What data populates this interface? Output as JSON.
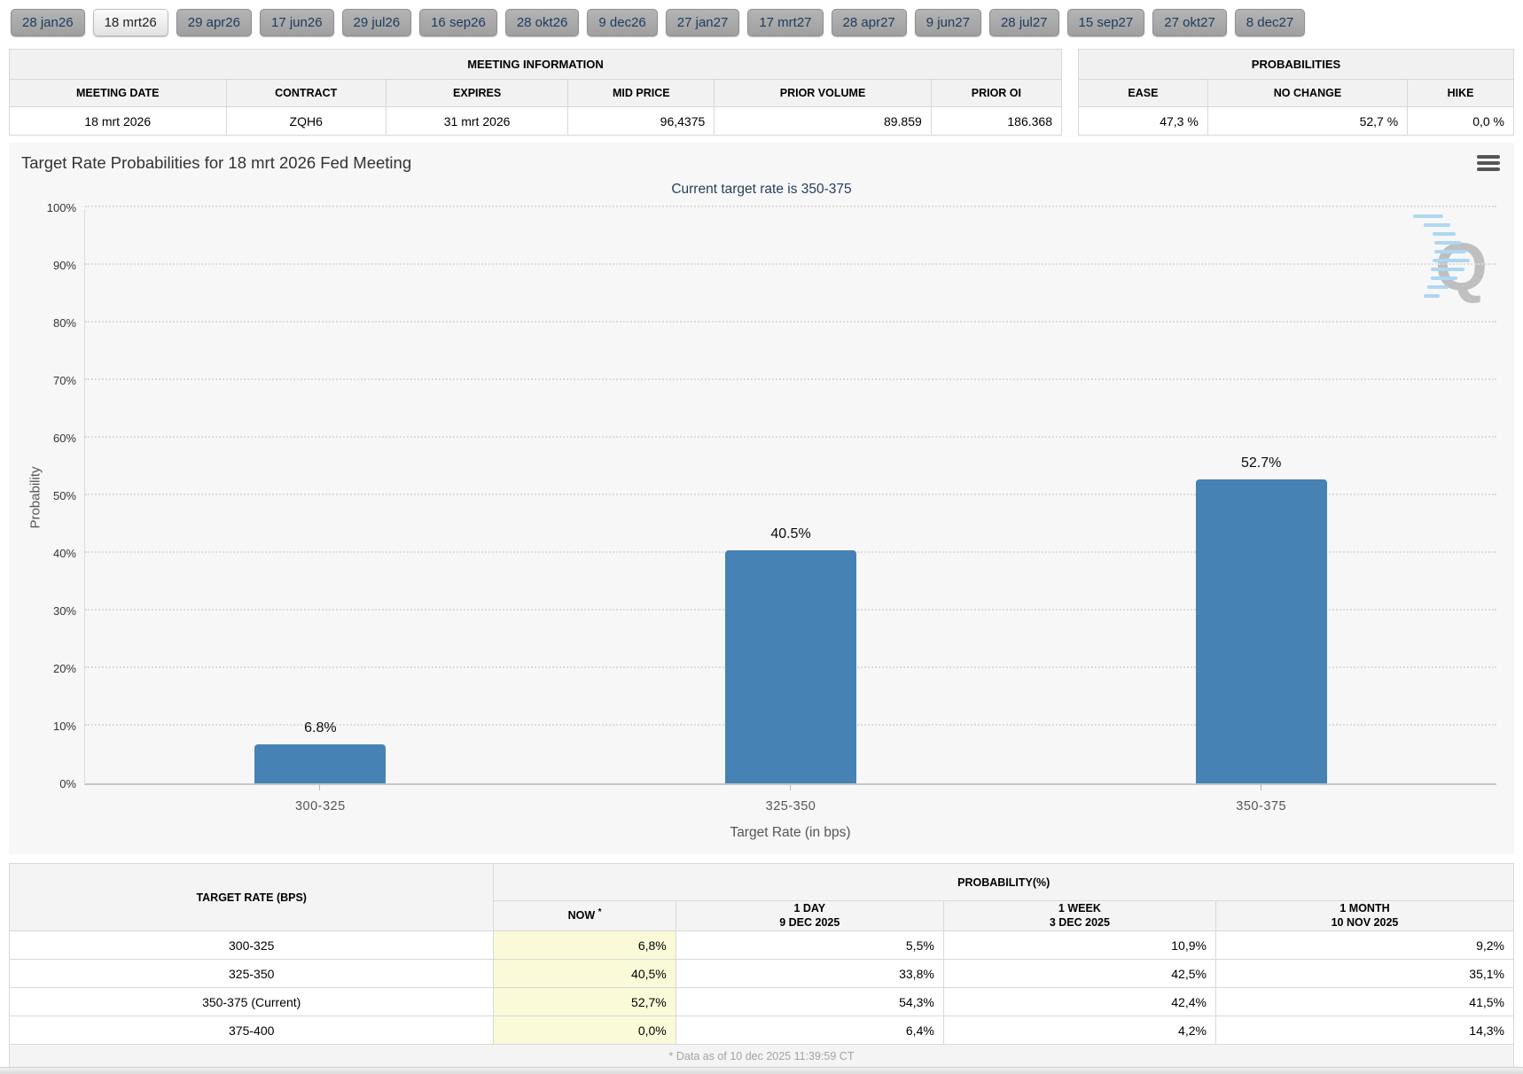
{
  "tabs": {
    "items": [
      {
        "label": "28 jan26",
        "selected": false
      },
      {
        "label": "18 mrt26",
        "selected": true
      },
      {
        "label": "29 apr26",
        "selected": false
      },
      {
        "label": "17 jun26",
        "selected": false
      },
      {
        "label": "29 jul26",
        "selected": false
      },
      {
        "label": "16 sep26",
        "selected": false
      },
      {
        "label": "28 okt26",
        "selected": false
      },
      {
        "label": "9 dec26",
        "selected": false
      },
      {
        "label": "27 jan27",
        "selected": false
      },
      {
        "label": "17 mrt27",
        "selected": false
      },
      {
        "label": "28 apr27",
        "selected": false
      },
      {
        "label": "9 jun27",
        "selected": false
      },
      {
        "label": "28 jul27",
        "selected": false
      },
      {
        "label": "15 sep27",
        "selected": false
      },
      {
        "label": "27 okt27",
        "selected": false
      },
      {
        "label": "8 dec27",
        "selected": false
      }
    ]
  },
  "meeting_info": {
    "title": "MEETING INFORMATION",
    "headers": [
      "MEETING DATE",
      "CONTRACT",
      "EXPIRES",
      "MID PRICE",
      "PRIOR VOLUME",
      "PRIOR OI"
    ],
    "values": [
      "18 mrt 2026",
      "ZQH6",
      "31 mrt 2026",
      "96,4375",
      "89.859",
      "186.368"
    ]
  },
  "probabilities_summary": {
    "title": "PROBABILITIES",
    "headers": [
      "EASE",
      "NO CHANGE",
      "HIKE"
    ],
    "values": [
      "47,3 %",
      "52,7 %",
      "0,0 %"
    ]
  },
  "chart": {
    "menu_icon": "hamburger-menu-icon",
    "watermark_letter": "Q",
    "chart_data": {
      "type": "bar",
      "title": "Target Rate Probabilities for 18 mrt 2026 Fed Meeting",
      "subtitle": "Current target rate is 350-375",
      "categories": [
        "300-325",
        "325-350",
        "350-375"
      ],
      "values": [
        6.8,
        40.5,
        52.7
      ],
      "data_labels": [
        "6.8%",
        "40.5%",
        "52.7%"
      ],
      "xlabel": "Target Rate (in bps)",
      "ylabel": "Probability",
      "ylim": [
        0,
        100
      ],
      "ytick_step": 10,
      "ytick_suffix": "%",
      "grid": "horizontal-dotted",
      "legend": "none",
      "bar_color": "#4682b4"
    }
  },
  "rate_table": {
    "col_header": "TARGET RATE (BPS)",
    "group_header": "PROBABILITY(%)",
    "now_label": "NOW",
    "now_marker": "*",
    "history_columns": [
      {
        "line1": "1 DAY",
        "line2": "9 DEC 2025"
      },
      {
        "line1": "1 WEEK",
        "line2": "3 DEC 2025"
      },
      {
        "line1": "1 MONTH",
        "line2": "10 NOV 2025"
      }
    ],
    "rows": [
      {
        "rate": "300-325",
        "now": "6,8%",
        "day": "5,5%",
        "week": "10,9%",
        "month": "9,2%"
      },
      {
        "rate": "325-350",
        "now": "40,5%",
        "day": "33,8%",
        "week": "42,5%",
        "month": "35,1%"
      },
      {
        "rate": "350-375 (Current)",
        "now": "52,7%",
        "day": "54,3%",
        "week": "42,4%",
        "month": "41,5%"
      },
      {
        "rate": "375-400",
        "now": "0,0%",
        "day": "6,4%",
        "week": "4,2%",
        "month": "14,3%"
      }
    ],
    "footnote": "* Data as of 10 dec 2025 11:39:59 CT"
  },
  "colors": {
    "bar": "#4682b4",
    "subtitle_text": "#26415e",
    "tab_text": "#1b3a5e",
    "now_column_bg": "#fafad9",
    "chart_background": "#f7f7f7"
  }
}
